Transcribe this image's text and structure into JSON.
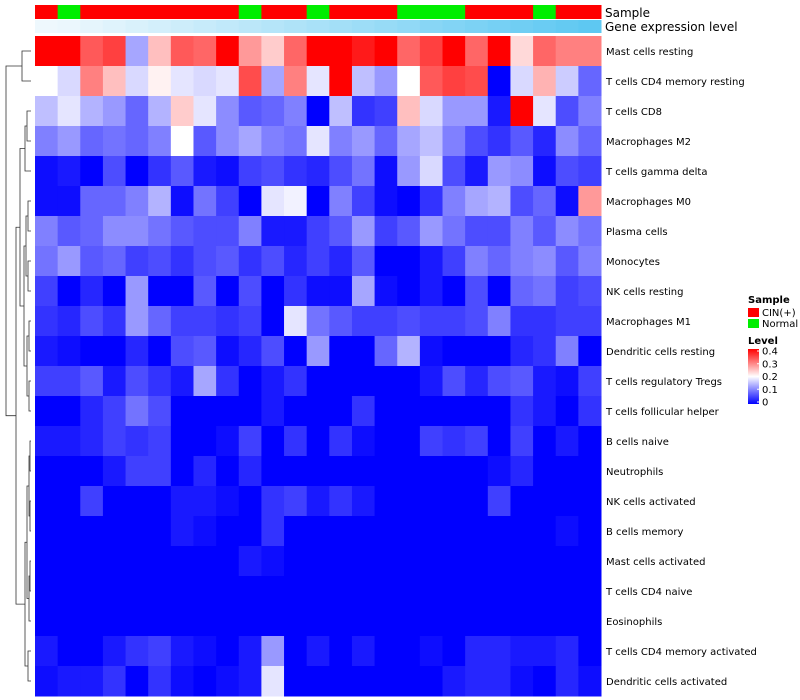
{
  "chart_data": {
    "type": "heatmap",
    "annotation_titles": {
      "sample": "Sample",
      "expression": "Gene expression level"
    },
    "sample_groups": [
      "CIN(+)",
      "Normal",
      "CIN(+)",
      "CIN(+)",
      "CIN(+)",
      "CIN(+)",
      "CIN(+)",
      "CIN(+)",
      "CIN(+)",
      "Normal",
      "CIN(+)",
      "CIN(+)",
      "Normal",
      "CIN(+)",
      "CIN(+)",
      "CIN(+)",
      "Normal",
      "Normal",
      "Normal",
      "CIN(+)",
      "CIN(+)",
      "CIN(+)",
      "Normal",
      "CIN(+)",
      "CIN(+)"
    ],
    "group_colors": {
      "CIN(+)": "#ff0000",
      "Normal": "#00ee00"
    },
    "expression_strip": [
      0.02,
      0.03,
      0.05,
      0.07,
      0.09,
      0.11,
      0.13,
      0.15,
      0.17,
      0.19,
      0.21,
      0.23,
      0.25,
      0.27,
      0.29,
      0.31,
      0.33,
      0.36,
      0.38,
      0.4,
      0.42,
      0.44,
      0.46,
      0.48,
      0.5
    ],
    "expression_strip_colors": [
      "#eef8fd",
      "#5ec8f2"
    ],
    "rows": [
      "Mast cells resting",
      "T cells CD4 memory resting",
      "T cells CD8",
      "Macrophages M2",
      "T cells gamma delta",
      "Macrophages M0",
      "Plasma cells",
      "Monocytes",
      "NK cells resting",
      "Macrophages M1",
      "Dendritic cells resting",
      "T cells regulatory  Tregs",
      "T cells follicular helper",
      "B cells naive",
      "Neutrophils",
      "NK cells activated",
      "B cells memory",
      "Mast cells activated",
      "T cells CD4 naive",
      "Eosinophils",
      "T cells CD4 memory activated",
      "Dendritic cells activated"
    ],
    "values": [
      [
        0.4,
        0.4,
        0.33,
        0.35,
        0.13,
        0.25,
        0.33,
        0.32,
        0.4,
        0.28,
        0.24,
        0.32,
        0.4,
        0.4,
        0.38,
        0.4,
        0.32,
        0.35,
        0.4,
        0.32,
        0.4,
        0.23,
        0.32,
        0.3,
        0.3
      ],
      [
        0.2,
        0.17,
        0.3,
        0.25,
        0.17,
        0.21,
        0.18,
        0.17,
        0.18,
        0.34,
        0.13,
        0.3,
        0.18,
        0.4,
        0.15,
        0.12,
        0.2,
        0.33,
        0.35,
        0.34,
        0.0,
        0.17,
        0.26,
        0.16,
        0.08
      ],
      [
        0.15,
        0.18,
        0.14,
        0.12,
        0.08,
        0.14,
        0.24,
        0.18,
        0.11,
        0.07,
        0.08,
        0.1,
        0.0,
        0.15,
        0.04,
        0.05,
        0.25,
        0.17,
        0.12,
        0.12,
        0.02,
        0.4,
        0.18,
        0.06,
        0.1
      ],
      [
        0.1,
        0.12,
        0.08,
        0.09,
        0.08,
        0.1,
        0.2,
        0.07,
        0.11,
        0.13,
        0.1,
        0.09,
        0.18,
        0.1,
        0.12,
        0.08,
        0.13,
        0.15,
        0.1,
        0.06,
        0.04,
        0.07,
        0.03,
        0.11,
        0.08
      ],
      [
        0.01,
        0.02,
        0.0,
        0.06,
        0.0,
        0.04,
        0.07,
        0.02,
        0.01,
        0.05,
        0.06,
        0.04,
        0.03,
        0.06,
        0.09,
        0.01,
        0.12,
        0.17,
        0.06,
        0.02,
        0.12,
        0.11,
        0.01,
        0.06,
        0.05
      ],
      [
        0.01,
        0.01,
        0.08,
        0.08,
        0.1,
        0.14,
        0.01,
        0.09,
        0.05,
        0.0,
        0.18,
        0.19,
        0.0,
        0.1,
        0.05,
        0.01,
        0.0,
        0.04,
        0.1,
        0.13,
        0.14,
        0.06,
        0.08,
        0.01,
        0.28
      ],
      [
        0.1,
        0.07,
        0.08,
        0.11,
        0.11,
        0.09,
        0.07,
        0.06,
        0.06,
        0.1,
        0.02,
        0.02,
        0.05,
        0.07,
        0.12,
        0.05,
        0.07,
        0.12,
        0.09,
        0.06,
        0.06,
        0.1,
        0.07,
        0.11,
        0.09
      ],
      [
        0.09,
        0.12,
        0.07,
        0.08,
        0.05,
        0.06,
        0.04,
        0.06,
        0.07,
        0.04,
        0.06,
        0.03,
        0.05,
        0.03,
        0.07,
        0.0,
        0.0,
        0.02,
        0.05,
        0.1,
        0.08,
        0.1,
        0.11,
        0.07,
        0.1
      ],
      [
        0.05,
        0.0,
        0.03,
        0.0,
        0.12,
        0.0,
        0.0,
        0.07,
        0.0,
        0.06,
        0.0,
        0.04,
        0.01,
        0.01,
        0.13,
        0.01,
        0.0,
        0.02,
        0.0,
        0.06,
        0.0,
        0.08,
        0.09,
        0.05,
        0.06
      ],
      [
        0.04,
        0.03,
        0.06,
        0.04,
        0.12,
        0.08,
        0.05,
        0.05,
        0.04,
        0.05,
        0.0,
        0.18,
        0.09,
        0.07,
        0.05,
        0.05,
        0.06,
        0.05,
        0.05,
        0.06,
        0.1,
        0.04,
        0.04,
        0.05,
        0.05
      ],
      [
        0.02,
        0.01,
        0.0,
        0.0,
        0.03,
        0.0,
        0.06,
        0.07,
        0.01,
        0.03,
        0.06,
        0.0,
        0.12,
        0.0,
        0.0,
        0.08,
        0.14,
        0.01,
        0.0,
        0.0,
        0.0,
        0.03,
        0.04,
        0.1,
        0.0
      ],
      [
        0.05,
        0.05,
        0.07,
        0.02,
        0.06,
        0.04,
        0.02,
        0.13,
        0.04,
        0.0,
        0.02,
        0.04,
        0.0,
        0.0,
        0.0,
        0.0,
        0.0,
        0.02,
        0.06,
        0.03,
        0.06,
        0.07,
        0.02,
        0.01,
        0.05
      ],
      [
        0.0,
        0.0,
        0.03,
        0.05,
        0.09,
        0.06,
        0.0,
        0.0,
        0.0,
        0.0,
        0.02,
        0.0,
        0.0,
        0.0,
        0.04,
        0.0,
        0.0,
        0.0,
        0.0,
        0.0,
        0.0,
        0.04,
        0.02,
        0.0,
        0.04
      ],
      [
        0.02,
        0.02,
        0.03,
        0.05,
        0.04,
        0.05,
        0.0,
        0.0,
        0.01,
        0.05,
        0.0,
        0.04,
        0.0,
        0.04,
        0.01,
        0.0,
        0.0,
        0.05,
        0.04,
        0.05,
        0.0,
        0.05,
        0.0,
        0.02,
        0.0
      ],
      [
        0.0,
        0.0,
        0.0,
        0.02,
        0.05,
        0.05,
        0.0,
        0.03,
        0.0,
        0.03,
        0.0,
        0.0,
        0.0,
        0.0,
        0.0,
        0.0,
        0.0,
        0.0,
        0.0,
        0.0,
        0.01,
        0.03,
        0.0,
        0.0,
        0.0
      ],
      [
        0.0,
        0.0,
        0.05,
        0.0,
        0.0,
        0.0,
        0.02,
        0.02,
        0.01,
        0.0,
        0.04,
        0.05,
        0.02,
        0.04,
        0.02,
        0.0,
        0.0,
        0.0,
        0.0,
        0.0,
        0.05,
        0.0,
        0.0,
        0.0,
        0.0
      ],
      [
        0.0,
        0.0,
        0.0,
        0.0,
        0.0,
        0.0,
        0.02,
        0.01,
        0.0,
        0.0,
        0.04,
        0.0,
        0.0,
        0.0,
        0.0,
        0.0,
        0.0,
        0.0,
        0.0,
        0.0,
        0.0,
        0.0,
        0.0,
        0.01,
        0.0
      ],
      [
        0.0,
        0.0,
        0.0,
        0.0,
        0.0,
        0.0,
        0.0,
        0.0,
        0.0,
        0.02,
        0.01,
        0.0,
        0.0,
        0.0,
        0.0,
        0.0,
        0.0,
        0.0,
        0.0,
        0.0,
        0.0,
        0.0,
        0.0,
        0.0,
        0.0
      ],
      [
        0.0,
        0.0,
        0.0,
        0.0,
        0.0,
        0.0,
        0.0,
        0.0,
        0.0,
        0.0,
        0.0,
        0.0,
        0.0,
        0.0,
        0.0,
        0.0,
        0.0,
        0.0,
        0.0,
        0.0,
        0.0,
        0.0,
        0.0,
        0.0,
        0.0
      ],
      [
        0.0,
        0.0,
        0.0,
        0.0,
        0.0,
        0.0,
        0.0,
        0.0,
        0.0,
        0.0,
        0.0,
        0.0,
        0.0,
        0.0,
        0.0,
        0.0,
        0.0,
        0.0,
        0.0,
        0.0,
        0.0,
        0.0,
        0.0,
        0.0,
        0.0
      ],
      [
        0.02,
        0.0,
        0.0,
        0.02,
        0.04,
        0.05,
        0.02,
        0.01,
        0.0,
        0.02,
        0.12,
        0.0,
        0.02,
        0.0,
        0.02,
        0.0,
        0.0,
        0.01,
        0.0,
        0.03,
        0.03,
        0.02,
        0.02,
        0.03,
        0.0
      ],
      [
        0.01,
        0.02,
        0.02,
        0.04,
        0.0,
        0.04,
        0.01,
        0.0,
        0.01,
        0.02,
        0.18,
        0.0,
        0.0,
        0.0,
        0.0,
        0.0,
        0.0,
        0.0,
        0.02,
        0.03,
        0.03,
        0.01,
        0.0,
        0.03,
        0.01
      ]
    ],
    "color_scale": {
      "min": 0,
      "mid": 0.2,
      "max": 0.4,
      "low": "#0000ff",
      "midColor": "#ffffff",
      "high": "#ff0000"
    },
    "legend": {
      "sample_title": "Sample",
      "sample_entries": [
        "CIN(+)",
        "Normal"
      ],
      "level_title": "Level",
      "level_ticks": [
        "0.4",
        "0.3",
        "0.2",
        "0.1",
        "0"
      ],
      "placement": "right"
    },
    "dendrogram": {
      "merges": [
        [
          0,
          1
        ],
        [
          2,
          3
        ],
        [
          4,
          5
        ],
        [
          6,
          7
        ],
        [
          8,
          9
        ],
        [
          10,
          11
        ],
        [
          12,
          13
        ],
        [
          14,
          15
        ],
        [
          16,
          17
        ],
        [
          18,
          19
        ],
        [
          20,
          21
        ]
      ]
    }
  }
}
